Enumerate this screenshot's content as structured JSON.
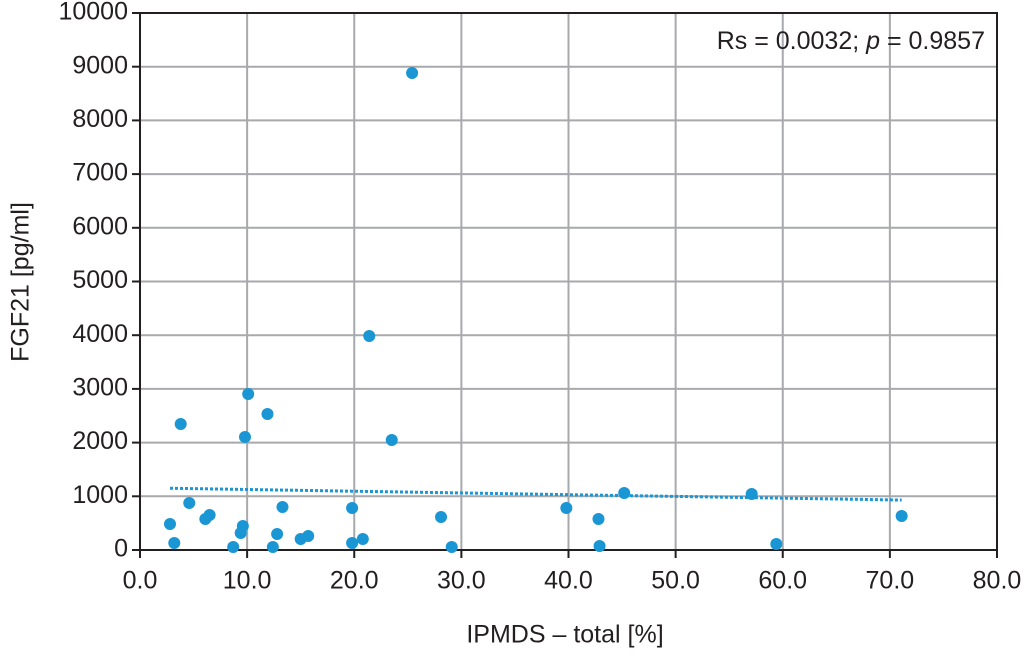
{
  "chart_data": {
    "type": "scatter",
    "x_label": "IPMDS – total [%]",
    "y_label": "FGF21 [pg/ml]",
    "annotation": [
      "Rs = 0.0032; ",
      "p",
      " = 0.9857"
    ],
    "color": "#1a96d4",
    "grid": true,
    "xlim": [
      0,
      80
    ],
    "ylim": [
      0,
      10000
    ],
    "xticks": [
      {
        "value": 0,
        "label": "0.0"
      },
      {
        "value": 10,
        "label": "10.0"
      },
      {
        "value": 20,
        "label": "20.0"
      },
      {
        "value": 30,
        "label": "30.0"
      },
      {
        "value": 40,
        "label": "40.0"
      },
      {
        "value": 50,
        "label": "50.0"
      },
      {
        "value": 60,
        "label": "60.0"
      },
      {
        "value": 70,
        "label": "70.0"
      },
      {
        "value": 80,
        "label": "80.0"
      }
    ],
    "yticks": [
      0,
      1000,
      2000,
      3000,
      4000,
      5000,
      6000,
      7000,
      8000,
      9000,
      10000
    ],
    "x": [
      2.8,
      3.2,
      3.8,
      4.6,
      6.1,
      6.5,
      8.7,
      9.4,
      9.6,
      9.8,
      10.1,
      11.9,
      12.4,
      12.8,
      13.3,
      15.0,
      15.7,
      19.8,
      19.8,
      20.8,
      21.4,
      23.5,
      25.4,
      28.1,
      29.1,
      39.8,
      42.8,
      42.9,
      45.2,
      57.1,
      59.4,
      71.1
    ],
    "values": [
      484,
      130,
      2346,
      875,
      577,
      652,
      56,
      317,
      447,
      2104,
      2905,
      2533,
      56,
      298,
      801,
      205,
      261,
      782,
      130,
      205,
      3985,
      2048,
      8883,
      615,
      56,
      782,
      577,
      74,
      1061,
      1043,
      112,
      633
    ],
    "trend": {
      "x": [
        2.8,
        71.1
      ],
      "values": [
        1150,
        930
      ]
    }
  }
}
